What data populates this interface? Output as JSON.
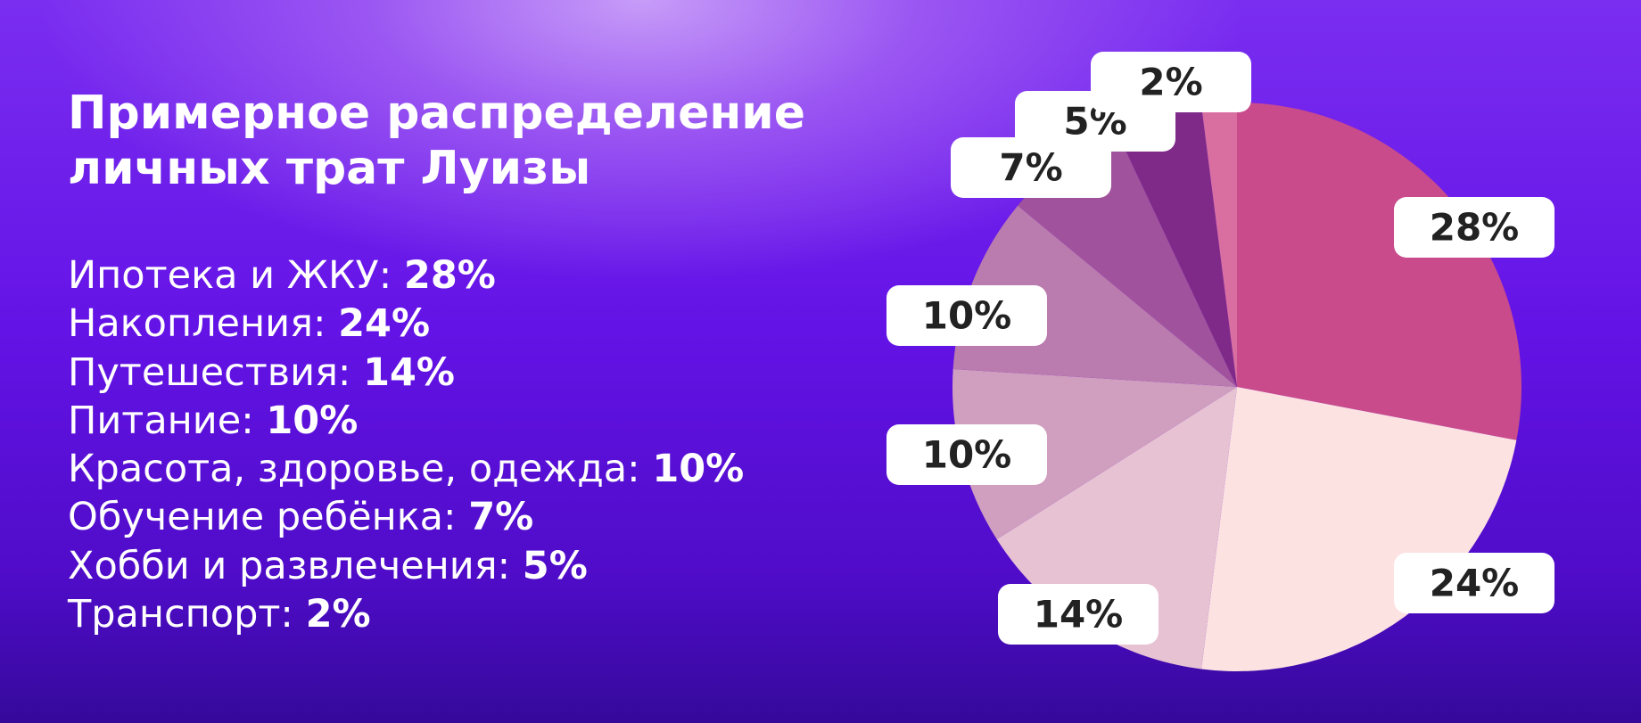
{
  "chart_data": {
    "type": "pie",
    "title": "Примерное распределение личных трат Луизы",
    "categories": [
      "Ипотека и ЖКУ:",
      "Накопления:",
      "Путешествия:",
      "Питание:",
      "Красота, здоровье, одежда:",
      "Обучение ребёнка:",
      "Хобби и развлечения:",
      "Транспорт:"
    ],
    "values": [
      28,
      24,
      14,
      10,
      10,
      7,
      5,
      2
    ],
    "value_labels": [
      "28%",
      "24%",
      "14%",
      "10%",
      "10%",
      "7%",
      "5%",
      "2%"
    ],
    "colors": [
      "#c94b8c",
      "#fde2e2",
      "#e7c2d3",
      "#d09ebf",
      "#ba7bae",
      "#a1529d",
      "#7f2a89",
      "#d96fa1"
    ]
  }
}
